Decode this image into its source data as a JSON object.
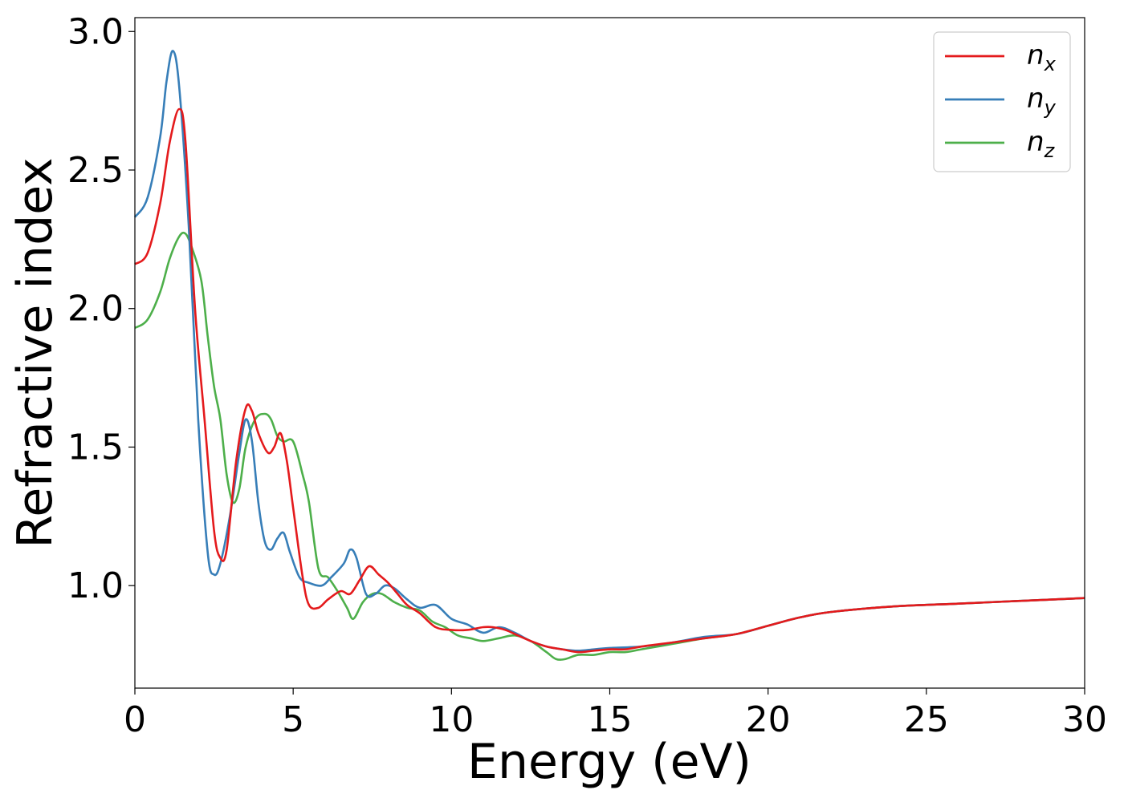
{
  "chart_data": {
    "type": "line",
    "title": "",
    "xlabel": "Energy (eV)",
    "ylabel": "Refractive index",
    "xlim": [
      0,
      30
    ],
    "ylim": [
      0.63,
      3.05
    ],
    "xticks": [
      0,
      5,
      10,
      15,
      20,
      25,
      30
    ],
    "xtick_labels": [
      "0",
      "5",
      "10",
      "15",
      "20",
      "25",
      "30"
    ],
    "yticks": [
      1.0,
      1.5,
      2.0,
      2.5,
      3.0
    ],
    "ytick_labels": [
      "1.0",
      "1.5",
      "2.0",
      "2.5",
      "3.0"
    ],
    "grid": false,
    "legend_position": "top-right",
    "series": [
      {
        "name": "n",
        "subscript": "x",
        "color": "#e41a1c",
        "x": [
          0,
          0.4,
          0.8,
          1.1,
          1.4,
          1.6,
          1.9,
          2.2,
          2.5,
          2.7,
          2.9,
          3.2,
          3.5,
          3.7,
          3.9,
          4.2,
          4.4,
          4.6,
          4.8,
          5.0,
          5.3,
          5.5,
          5.8,
          6.1,
          6.5,
          6.8,
          7.1,
          7.4,
          7.7,
          8.0,
          8.3,
          8.6,
          9.0,
          9.5,
          10.0,
          10.5,
          11.0,
          11.3,
          11.7,
          12.1,
          12.5,
          13.0,
          13.5,
          14.0,
          14.5,
          15.0,
          15.5,
          16.0,
          17.0,
          18.0,
          19.0,
          20.0,
          21.0,
          22.0,
          24.0,
          26.0,
          28.0,
          30.0
        ],
        "y": [
          2.16,
          2.2,
          2.38,
          2.6,
          2.72,
          2.6,
          2.0,
          1.6,
          1.2,
          1.1,
          1.13,
          1.45,
          1.64,
          1.63,
          1.55,
          1.48,
          1.5,
          1.55,
          1.45,
          1.28,
          1.03,
          0.93,
          0.92,
          0.95,
          0.98,
          0.97,
          1.02,
          1.07,
          1.04,
          1.01,
          0.97,
          0.93,
          0.9,
          0.85,
          0.84,
          0.84,
          0.85,
          0.85,
          0.84,
          0.82,
          0.8,
          0.78,
          0.77,
          0.76,
          0.765,
          0.77,
          0.77,
          0.78,
          0.795,
          0.81,
          0.825,
          0.855,
          0.885,
          0.905,
          0.925,
          0.935,
          0.945,
          0.955
        ]
      },
      {
        "name": "n",
        "subscript": "y",
        "color": "#377eb8",
        "x": [
          0,
          0.4,
          0.8,
          1.0,
          1.2,
          1.4,
          1.7,
          2.0,
          2.3,
          2.5,
          2.7,
          3.0,
          3.3,
          3.5,
          3.7,
          3.9,
          4.1,
          4.3,
          4.5,
          4.7,
          4.9,
          5.2,
          5.5,
          5.9,
          6.2,
          6.6,
          6.8,
          7.0,
          7.3,
          7.6,
          7.9,
          8.2,
          8.6,
          9.0,
          9.5,
          10.0,
          10.5,
          11.0,
          11.5,
          12.0,
          12.5,
          13.0,
          13.5,
          14.0,
          14.5,
          15.0,
          16.0,
          17.0,
          18.0,
          19.0,
          20.0,
          21.0,
          22.0,
          24.0,
          26.0,
          28.0,
          30.0
        ],
        "y": [
          2.33,
          2.4,
          2.62,
          2.82,
          2.93,
          2.8,
          2.3,
          1.6,
          1.12,
          1.04,
          1.08,
          1.25,
          1.48,
          1.6,
          1.52,
          1.3,
          1.16,
          1.13,
          1.17,
          1.19,
          1.12,
          1.03,
          1.01,
          1.0,
          1.03,
          1.08,
          1.13,
          1.1,
          0.97,
          0.97,
          1.0,
          0.99,
          0.95,
          0.92,
          0.93,
          0.88,
          0.86,
          0.83,
          0.85,
          0.83,
          0.8,
          0.78,
          0.77,
          0.765,
          0.77,
          0.775,
          0.78,
          0.795,
          0.815,
          0.825,
          0.855,
          0.885,
          0.905,
          0.925,
          0.935,
          0.945,
          0.955
        ]
      },
      {
        "name": "n",
        "subscript": "z",
        "color": "#4daf4a",
        "x": [
          0,
          0.4,
          0.8,
          1.1,
          1.4,
          1.6,
          1.8,
          2.1,
          2.3,
          2.5,
          2.7,
          2.9,
          3.1,
          3.3,
          3.5,
          3.8,
          4.1,
          4.3,
          4.5,
          4.7,
          5.0,
          5.3,
          5.5,
          5.8,
          6.1,
          6.4,
          6.7,
          6.9,
          7.2,
          7.5,
          7.8,
          8.2,
          8.6,
          9.0,
          9.4,
          9.8,
          10.2,
          10.6,
          11.0,
          11.5,
          12.0,
          12.5,
          13.0,
          13.3,
          13.6,
          14.0,
          14.5,
          15.0,
          15.5,
          16.0,
          17.0,
          18.0,
          19.0,
          20.0,
          21.0,
          22.0,
          24.0,
          26.0,
          28.0,
          30.0
        ],
        "y": [
          1.93,
          1.96,
          2.06,
          2.18,
          2.26,
          2.27,
          2.22,
          2.1,
          1.9,
          1.72,
          1.6,
          1.4,
          1.3,
          1.35,
          1.5,
          1.6,
          1.62,
          1.6,
          1.54,
          1.52,
          1.52,
          1.4,
          1.3,
          1.06,
          1.03,
          0.98,
          0.92,
          0.88,
          0.94,
          0.97,
          0.97,
          0.94,
          0.92,
          0.91,
          0.87,
          0.85,
          0.82,
          0.81,
          0.8,
          0.81,
          0.82,
          0.8,
          0.76,
          0.735,
          0.735,
          0.75,
          0.75,
          0.76,
          0.76,
          0.77,
          0.79,
          0.81,
          0.825,
          0.855,
          0.885,
          0.905,
          0.925,
          0.935,
          0.945,
          0.955
        ]
      }
    ]
  }
}
